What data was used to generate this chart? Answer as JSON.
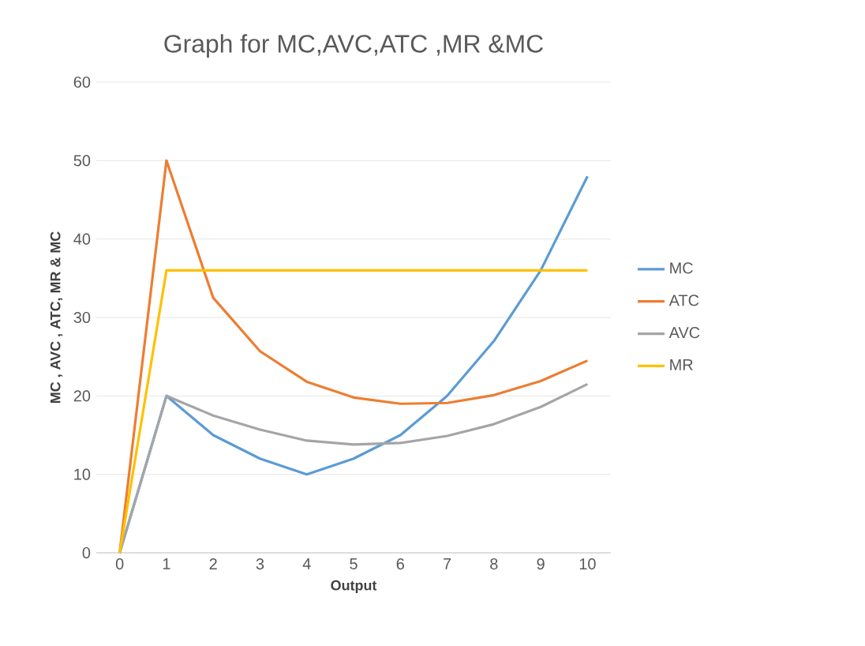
{
  "chart_data": {
    "type": "line",
    "title": "Graph for MC,AVC,ATC ,MR &MC",
    "xlabel": "Output",
    "ylabel": "MC , AVC , ATC, MR & MC",
    "categories": [
      "0",
      "1",
      "2",
      "3",
      "4",
      "5",
      "6",
      "7",
      "8",
      "9",
      "10"
    ],
    "series": [
      {
        "name": "MC",
        "color": "#5b9bd5",
        "values": [
          0,
          20,
          15,
          12,
          10,
          12,
          15,
          20,
          27,
          36,
          48
        ]
      },
      {
        "name": "ATC",
        "color": "#ed7d31",
        "values": [
          0,
          50,
          32.5,
          25.7,
          21.8,
          19.8,
          19,
          19.1,
          20.1,
          21.9,
          24.5
        ]
      },
      {
        "name": "AVC",
        "color": "#a5a5a5",
        "values": [
          0,
          20,
          17.5,
          15.7,
          14.3,
          13.8,
          14,
          14.9,
          16.4,
          18.6,
          21.5
        ]
      },
      {
        "name": "MR",
        "color": "#ffc000",
        "values": [
          0,
          36,
          36,
          36,
          36,
          36,
          36,
          36,
          36,
          36,
          36
        ]
      }
    ],
    "ylim": [
      0,
      60
    ],
    "yticks": [
      0,
      10,
      20,
      30,
      40,
      50,
      60
    ],
    "grid": "y",
    "legend": "right",
    "marker": "none",
    "line_style": "solid"
  }
}
